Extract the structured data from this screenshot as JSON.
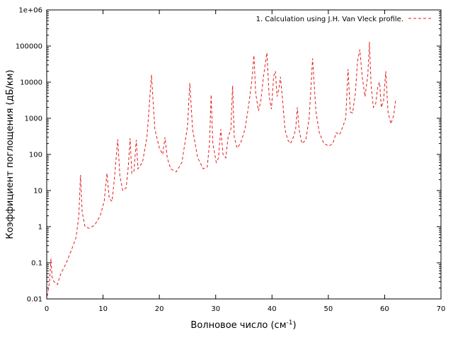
{
  "chart_data": {
    "type": "line",
    "title": "",
    "xlabel": "Волновое число (см",
    "xlabel_sup": "-1",
    "xlabel_close": ")",
    "ylabel": "Коэффициент поглощения (дБ/км)",
    "xlim": [
      0,
      70
    ],
    "ylim": [
      0.01,
      1000000
    ],
    "yscale": "log",
    "grid": false,
    "legend_position": "top-right",
    "x_ticks": [
      0,
      10,
      20,
      30,
      40,
      50,
      60,
      70
    ],
    "x_tick_labels": [
      "0",
      "10",
      "20",
      "30",
      "40",
      "50",
      "60",
      "70"
    ],
    "y_ticks": [
      0.01,
      0.1,
      1,
      10,
      100,
      1000,
      10000,
      100000,
      1000000
    ],
    "y_tick_labels": [
      "0.01",
      "0.1",
      "1",
      "10",
      "100",
      "1000",
      "10000",
      "100000",
      "1e+06"
    ],
    "series": [
      {
        "name": "1. Calculation using J.H. Van Vleck profile.",
        "color": "#e41a1c",
        "dash": "dashed",
        "points": [
          [
            0.1,
            0.012
          ],
          [
            0.5,
            0.03
          ],
          [
            0.75,
            0.13
          ],
          [
            0.95,
            0.04
          ],
          [
            1.3,
            0.03
          ],
          [
            1.9,
            0.025
          ],
          [
            2.5,
            0.05
          ],
          [
            3.5,
            0.1
          ],
          [
            4.5,
            0.25
          ],
          [
            5.2,
            0.5
          ],
          [
            5.7,
            2.0
          ],
          [
            6.0,
            27
          ],
          [
            6.3,
            2.5
          ],
          [
            6.8,
            1.0
          ],
          [
            7.5,
            0.9
          ],
          [
            8.5,
            1.1
          ],
          [
            9.5,
            2.0
          ],
          [
            10.2,
            5.0
          ],
          [
            10.7,
            30
          ],
          [
            11.1,
            6.0
          ],
          [
            11.6,
            5.0
          ],
          [
            12.1,
            30
          ],
          [
            12.6,
            260
          ],
          [
            13.0,
            25
          ],
          [
            13.5,
            10
          ],
          [
            14.1,
            12
          ],
          [
            14.5,
            50
          ],
          [
            14.8,
            280
          ],
          [
            15.1,
            30
          ],
          [
            15.5,
            35
          ],
          [
            15.9,
            250
          ],
          [
            16.2,
            40
          ],
          [
            17.0,
            60
          ],
          [
            17.8,
            300
          ],
          [
            18.6,
            16000
          ],
          [
            19.2,
            500
          ],
          [
            20.0,
            150
          ],
          [
            20.6,
            100
          ],
          [
            21.0,
            300
          ],
          [
            21.4,
            80
          ],
          [
            22.0,
            40
          ],
          [
            23.0,
            33
          ],
          [
            24.0,
            60
          ],
          [
            25.0,
            600
          ],
          [
            25.4,
            9500
          ],
          [
            25.9,
            500
          ],
          [
            26.8,
            80
          ],
          [
            27.8,
            40
          ],
          [
            28.5,
            45
          ],
          [
            28.9,
            200
          ],
          [
            29.2,
            4500
          ],
          [
            29.5,
            200
          ],
          [
            30.1,
            60
          ],
          [
            30.5,
            80
          ],
          [
            30.9,
            500
          ],
          [
            31.3,
            100
          ],
          [
            31.8,
            80
          ],
          [
            32.2,
            300
          ],
          [
            32.7,
            500
          ],
          [
            33.0,
            8000
          ],
          [
            33.3,
            300
          ],
          [
            33.8,
            150
          ],
          [
            34.4,
            200
          ],
          [
            35.2,
            500
          ],
          [
            35.8,
            2000
          ],
          [
            36.4,
            10000
          ],
          [
            36.8,
            55000
          ],
          [
            37.1,
            5000
          ],
          [
            37.6,
            1600
          ],
          [
            38.0,
            3000
          ],
          [
            38.5,
            15000
          ],
          [
            38.9,
            40000
          ],
          [
            39.1,
            65000
          ],
          [
            39.5,
            4000
          ],
          [
            39.9,
            1800
          ],
          [
            40.3,
            15000
          ],
          [
            40.6,
            20000
          ],
          [
            40.9,
            4000
          ],
          [
            41.2,
            6000
          ],
          [
            41.5,
            14000
          ],
          [
            41.9,
            3000
          ],
          [
            42.3,
            500
          ],
          [
            42.8,
            250
          ],
          [
            43.3,
            200
          ],
          [
            43.8,
            300
          ],
          [
            44.2,
            500
          ],
          [
            44.5,
            2000
          ],
          [
            44.8,
            500
          ],
          [
            45.3,
            200
          ],
          [
            46.0,
            250
          ],
          [
            46.6,
            1000
          ],
          [
            47.2,
            45000
          ],
          [
            47.8,
            1500
          ],
          [
            48.4,
            400
          ],
          [
            49.2,
            200
          ],
          [
            50.1,
            170
          ],
          [
            50.8,
            200
          ],
          [
            51.4,
            400
          ],
          [
            52.0,
            350
          ],
          [
            52.6,
            600
          ],
          [
            53.1,
            1000
          ],
          [
            53.5,
            23000
          ],
          [
            53.9,
            1500
          ],
          [
            54.3,
            1400
          ],
          [
            54.8,
            5000
          ],
          [
            55.2,
            40000
          ],
          [
            55.6,
            80000
          ],
          [
            56.0,
            15000
          ],
          [
            56.5,
            4000
          ],
          [
            57.0,
            15000
          ],
          [
            57.3,
            130000
          ],
          [
            57.6,
            8000
          ],
          [
            58.0,
            2000
          ],
          [
            58.4,
            2500
          ],
          [
            58.8,
            8000
          ],
          [
            59.1,
            10000
          ],
          [
            59.4,
            2000
          ],
          [
            59.8,
            3000
          ],
          [
            60.2,
            20000
          ],
          [
            60.6,
            1500
          ],
          [
            61.1,
            700
          ],
          [
            61.6,
            1200
          ],
          [
            62.0,
            3500
          ]
        ]
      }
    ]
  }
}
